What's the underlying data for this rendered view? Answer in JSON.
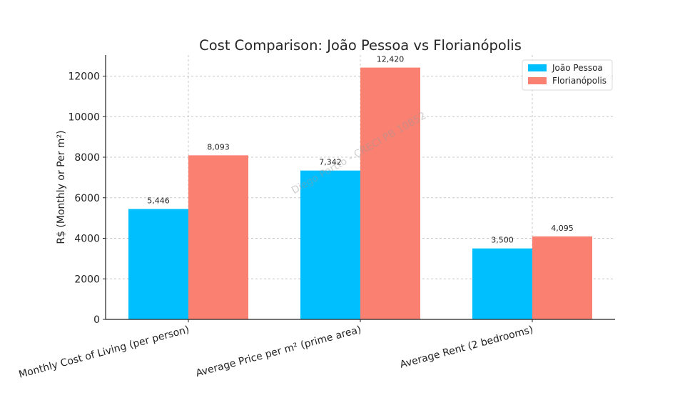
{
  "chart_data": {
    "type": "bar",
    "title": "Cost Comparison: João Pessoa vs Florianópolis",
    "xlabel": "",
    "ylabel": "R$ (Monthly or Per m²)",
    "categories": [
      "Monthly Cost of Living (per person)",
      "Average Price per m² (prime area)",
      "Average Rent (2 bedrooms)"
    ],
    "series": [
      {
        "name": "João Pessoa",
        "color": "#00bfff",
        "values": [
          5446,
          7342,
          3500
        ],
        "labels": [
          "5,446",
          "7,342",
          "3,500"
        ]
      },
      {
        "name": "Florianópolis",
        "color": "#fa8072",
        "values": [
          8093,
          12420,
          4095
        ],
        "labels": [
          "8,093",
          "12,420",
          "4,095"
        ]
      }
    ],
    "ylim": [
      0,
      13040
    ],
    "yticks": [
      0,
      2000,
      4000,
      6000,
      8000,
      10000,
      12000
    ],
    "grid": true,
    "legend_position": "top-right",
    "watermark": "Diego Portto - CRECI PB 10852"
  }
}
